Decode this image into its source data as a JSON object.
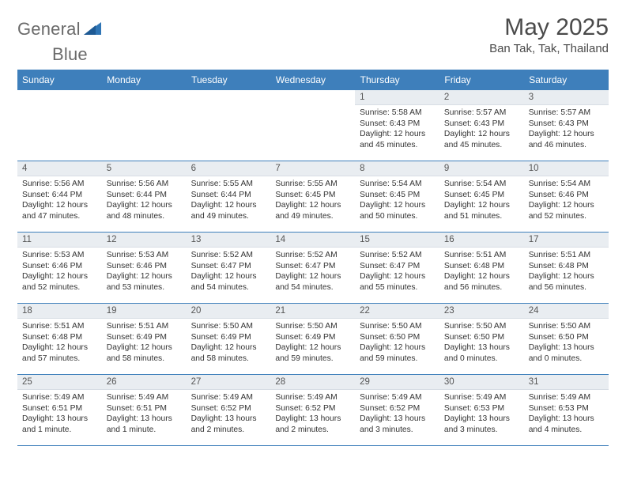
{
  "brand": {
    "name_l": "General",
    "name_r": "Blue"
  },
  "title": "May 2025",
  "location": "Ban Tak, Tak, Thailand",
  "colors": {
    "accent": "#3e7fbb",
    "header_text": "#ffffff",
    "daynum_bg": "#e9edf1",
    "text": "#333333",
    "muted": "#6a6a6a",
    "page_bg": "#ffffff"
  },
  "weekdays": [
    "Sunday",
    "Monday",
    "Tuesday",
    "Wednesday",
    "Thursday",
    "Friday",
    "Saturday"
  ],
  "calendar": {
    "leading_blanks": 4,
    "days": [
      {
        "n": 1,
        "sunrise": "5:58 AM",
        "sunset": "6:43 PM",
        "daylight": "12 hours and 45 minutes."
      },
      {
        "n": 2,
        "sunrise": "5:57 AM",
        "sunset": "6:43 PM",
        "daylight": "12 hours and 45 minutes."
      },
      {
        "n": 3,
        "sunrise": "5:57 AM",
        "sunset": "6:43 PM",
        "daylight": "12 hours and 46 minutes."
      },
      {
        "n": 4,
        "sunrise": "5:56 AM",
        "sunset": "6:44 PM",
        "daylight": "12 hours and 47 minutes."
      },
      {
        "n": 5,
        "sunrise": "5:56 AM",
        "sunset": "6:44 PM",
        "daylight": "12 hours and 48 minutes."
      },
      {
        "n": 6,
        "sunrise": "5:55 AM",
        "sunset": "6:44 PM",
        "daylight": "12 hours and 49 minutes."
      },
      {
        "n": 7,
        "sunrise": "5:55 AM",
        "sunset": "6:45 PM",
        "daylight": "12 hours and 49 minutes."
      },
      {
        "n": 8,
        "sunrise": "5:54 AM",
        "sunset": "6:45 PM",
        "daylight": "12 hours and 50 minutes."
      },
      {
        "n": 9,
        "sunrise": "5:54 AM",
        "sunset": "6:45 PM",
        "daylight": "12 hours and 51 minutes."
      },
      {
        "n": 10,
        "sunrise": "5:54 AM",
        "sunset": "6:46 PM",
        "daylight": "12 hours and 52 minutes."
      },
      {
        "n": 11,
        "sunrise": "5:53 AM",
        "sunset": "6:46 PM",
        "daylight": "12 hours and 52 minutes."
      },
      {
        "n": 12,
        "sunrise": "5:53 AM",
        "sunset": "6:46 PM",
        "daylight": "12 hours and 53 minutes."
      },
      {
        "n": 13,
        "sunrise": "5:52 AM",
        "sunset": "6:47 PM",
        "daylight": "12 hours and 54 minutes."
      },
      {
        "n": 14,
        "sunrise": "5:52 AM",
        "sunset": "6:47 PM",
        "daylight": "12 hours and 54 minutes."
      },
      {
        "n": 15,
        "sunrise": "5:52 AM",
        "sunset": "6:47 PM",
        "daylight": "12 hours and 55 minutes."
      },
      {
        "n": 16,
        "sunrise": "5:51 AM",
        "sunset": "6:48 PM",
        "daylight": "12 hours and 56 minutes."
      },
      {
        "n": 17,
        "sunrise": "5:51 AM",
        "sunset": "6:48 PM",
        "daylight": "12 hours and 56 minutes."
      },
      {
        "n": 18,
        "sunrise": "5:51 AM",
        "sunset": "6:48 PM",
        "daylight": "12 hours and 57 minutes."
      },
      {
        "n": 19,
        "sunrise": "5:51 AM",
        "sunset": "6:49 PM",
        "daylight": "12 hours and 58 minutes."
      },
      {
        "n": 20,
        "sunrise": "5:50 AM",
        "sunset": "6:49 PM",
        "daylight": "12 hours and 58 minutes."
      },
      {
        "n": 21,
        "sunrise": "5:50 AM",
        "sunset": "6:49 PM",
        "daylight": "12 hours and 59 minutes."
      },
      {
        "n": 22,
        "sunrise": "5:50 AM",
        "sunset": "6:50 PM",
        "daylight": "12 hours and 59 minutes."
      },
      {
        "n": 23,
        "sunrise": "5:50 AM",
        "sunset": "6:50 PM",
        "daylight": "13 hours and 0 minutes."
      },
      {
        "n": 24,
        "sunrise": "5:50 AM",
        "sunset": "6:50 PM",
        "daylight": "13 hours and 0 minutes."
      },
      {
        "n": 25,
        "sunrise": "5:49 AM",
        "sunset": "6:51 PM",
        "daylight": "13 hours and 1 minute."
      },
      {
        "n": 26,
        "sunrise": "5:49 AM",
        "sunset": "6:51 PM",
        "daylight": "13 hours and 1 minute."
      },
      {
        "n": 27,
        "sunrise": "5:49 AM",
        "sunset": "6:52 PM",
        "daylight": "13 hours and 2 minutes."
      },
      {
        "n": 28,
        "sunrise": "5:49 AM",
        "sunset": "6:52 PM",
        "daylight": "13 hours and 2 minutes."
      },
      {
        "n": 29,
        "sunrise": "5:49 AM",
        "sunset": "6:52 PM",
        "daylight": "13 hours and 3 minutes."
      },
      {
        "n": 30,
        "sunrise": "5:49 AM",
        "sunset": "6:53 PM",
        "daylight": "13 hours and 3 minutes."
      },
      {
        "n": 31,
        "sunrise": "5:49 AM",
        "sunset": "6:53 PM",
        "daylight": "13 hours and 4 minutes."
      }
    ]
  },
  "labels": {
    "sunrise": "Sunrise:",
    "sunset": "Sunset:",
    "daylight": "Daylight:"
  }
}
